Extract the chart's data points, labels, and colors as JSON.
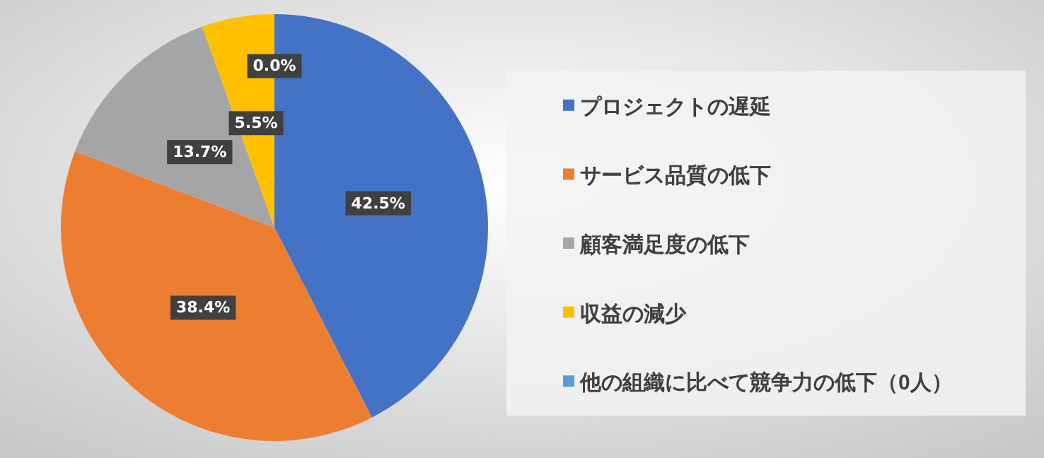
{
  "chart_data": {
    "type": "pie",
    "categories": [
      "プロジェクトの遅延",
      "サービス品質の低下",
      "顧客満足度の低下",
      "収益の減少",
      "他の組織に比べて競争力の低下（0人）"
    ],
    "values": [
      42.5,
      38.4,
      13.7,
      5.5,
      0.0
    ],
    "colors": [
      "#4472c4",
      "#ed7d31",
      "#a5a5a5",
      "#ffc000",
      "#5b9bd5"
    ],
    "value_labels": [
      "42.5%",
      "38.4%",
      "13.7%",
      "5.5%",
      "0.0%"
    ],
    "legend": "right"
  }
}
